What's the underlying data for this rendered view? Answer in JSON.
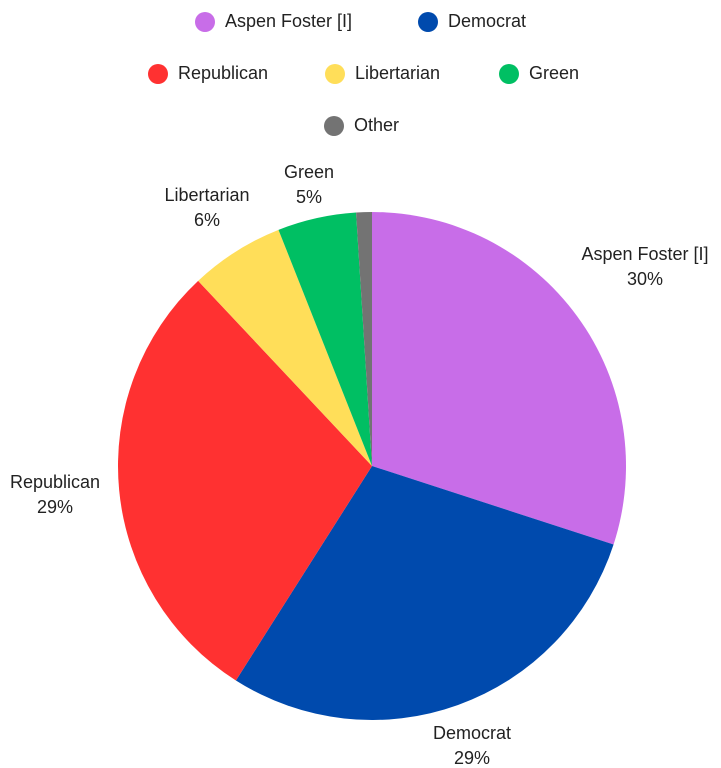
{
  "chart_data": {
    "type": "pie",
    "categories": [
      "Aspen Foster [I]",
      "Democrat",
      "Republican",
      "Libertarian",
      "Green",
      "Other"
    ],
    "values": [
      30,
      29,
      29,
      6,
      5,
      1
    ],
    "value_labels": [
      "30%",
      "29%",
      "29%",
      "6%",
      "5%",
      null
    ],
    "colors": [
      "#c86de8",
      "#004aad",
      "#ff3131",
      "#ffde59",
      "#00bf63",
      "#737373"
    ],
    "legend": "top"
  }
}
